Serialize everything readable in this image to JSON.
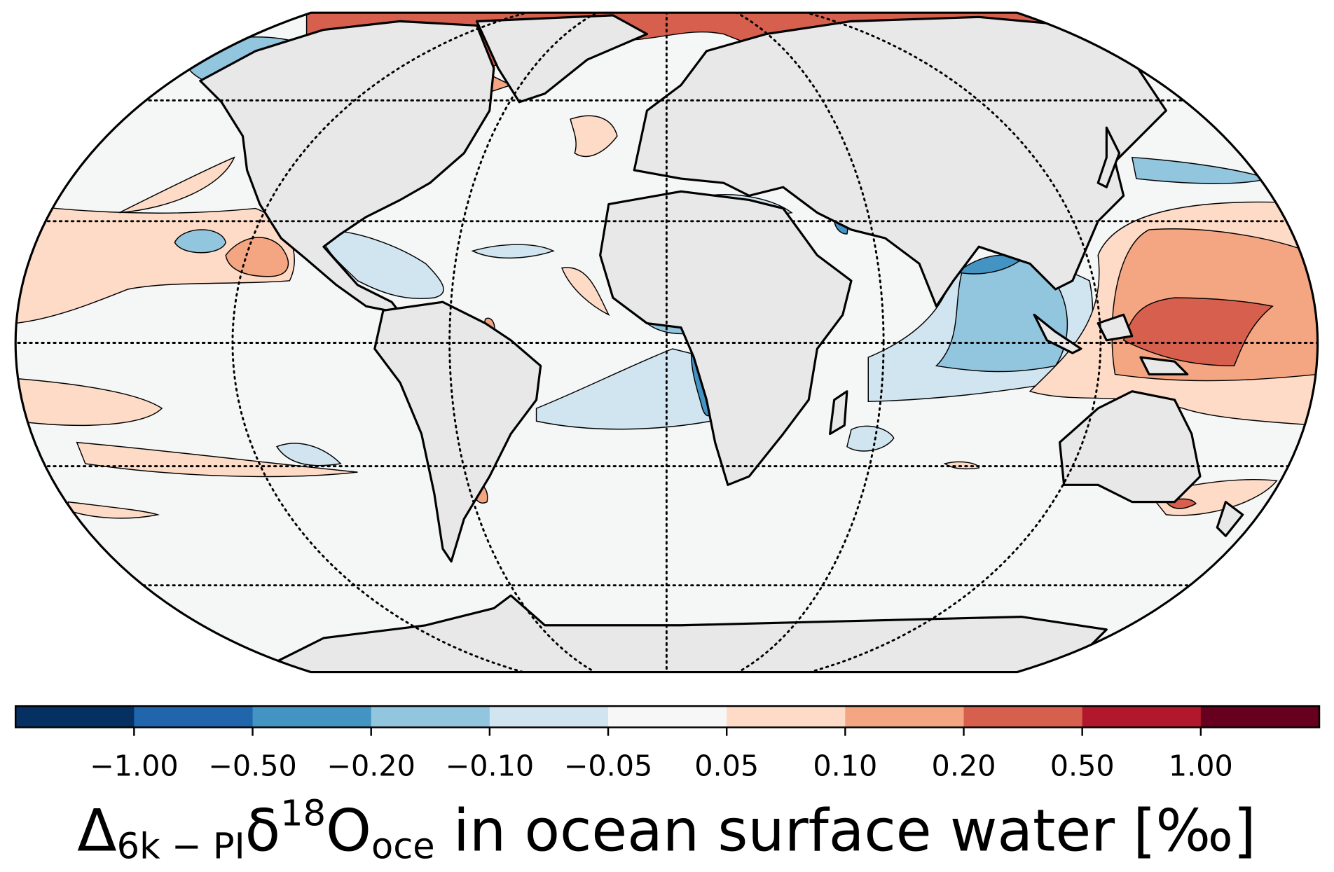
{
  "chart_data": {
    "type": "map",
    "title_parts": [
      {
        "text": "Δ",
        "style": "normal"
      },
      {
        "text": "6k − PI",
        "style": "sub"
      },
      {
        "text": "δ",
        "style": "normal"
      },
      {
        "text": "18",
        "style": "sup"
      },
      {
        "text": "O",
        "style": "normal"
      },
      {
        "text": "oce",
        "style": "sub"
      },
      {
        "text": " in ocean surface water [‰]",
        "style": "normal"
      }
    ],
    "colorbar": {
      "ticks": [
        {
          "value": -1,
          "label": "−1.00"
        },
        {
          "value": -0.5,
          "label": "−0.50"
        },
        {
          "value": -0.2,
          "label": "−0.20"
        },
        {
          "value": -0.1,
          "label": "−0.10"
        },
        {
          "value": -0.05,
          "label": "−0.05"
        },
        {
          "value": 0.05,
          "label": "0.05"
        },
        {
          "value": 0.1,
          "label": "0.10"
        },
        {
          "value": 0.2,
          "label": "0.20"
        },
        {
          "value": 0.5,
          "label": "0.50"
        },
        {
          "value": 1,
          "label": "1.00"
        }
      ],
      "colors": [
        "#053061",
        "#2166ac",
        "#4393c3",
        "#92c5de",
        "#d1e5f0",
        "#f7f7f7",
        "#fddbc7",
        "#f4a582",
        "#d6604d",
        "#b2182b",
        "#67001f"
      ],
      "extend": "both"
    }
  }
}
